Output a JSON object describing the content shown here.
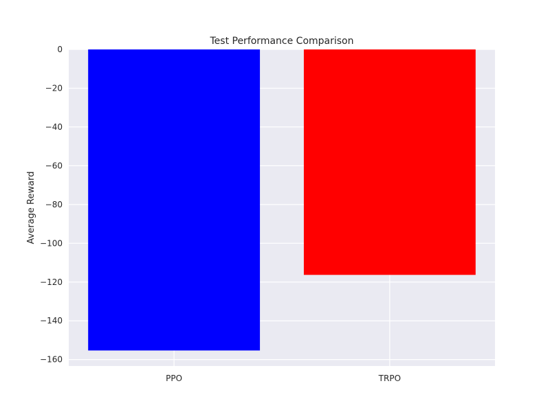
{
  "chart_data": {
    "type": "bar",
    "title": "Test Performance Comparison",
    "xlabel": "",
    "ylabel": "Average Reward",
    "categories": [
      "PPO",
      "TRPO"
    ],
    "values": [
      -155.3,
      -116.3
    ],
    "colors": [
      "#0000ff",
      "#ff0000"
    ],
    "ylim": [
      -163.3,
      0
    ],
    "yticks": [
      0,
      -20,
      -40,
      -60,
      -80,
      -100,
      -120,
      -140,
      -160
    ],
    "ytick_labels": [
      "0",
      "−20",
      "−40",
      "−60",
      "−80",
      "−100",
      "−120",
      "−140",
      "−160"
    ],
    "grid": true,
    "legend": "none",
    "plot_background": "#eaeaf2",
    "grid_color": "#ffffff"
  }
}
